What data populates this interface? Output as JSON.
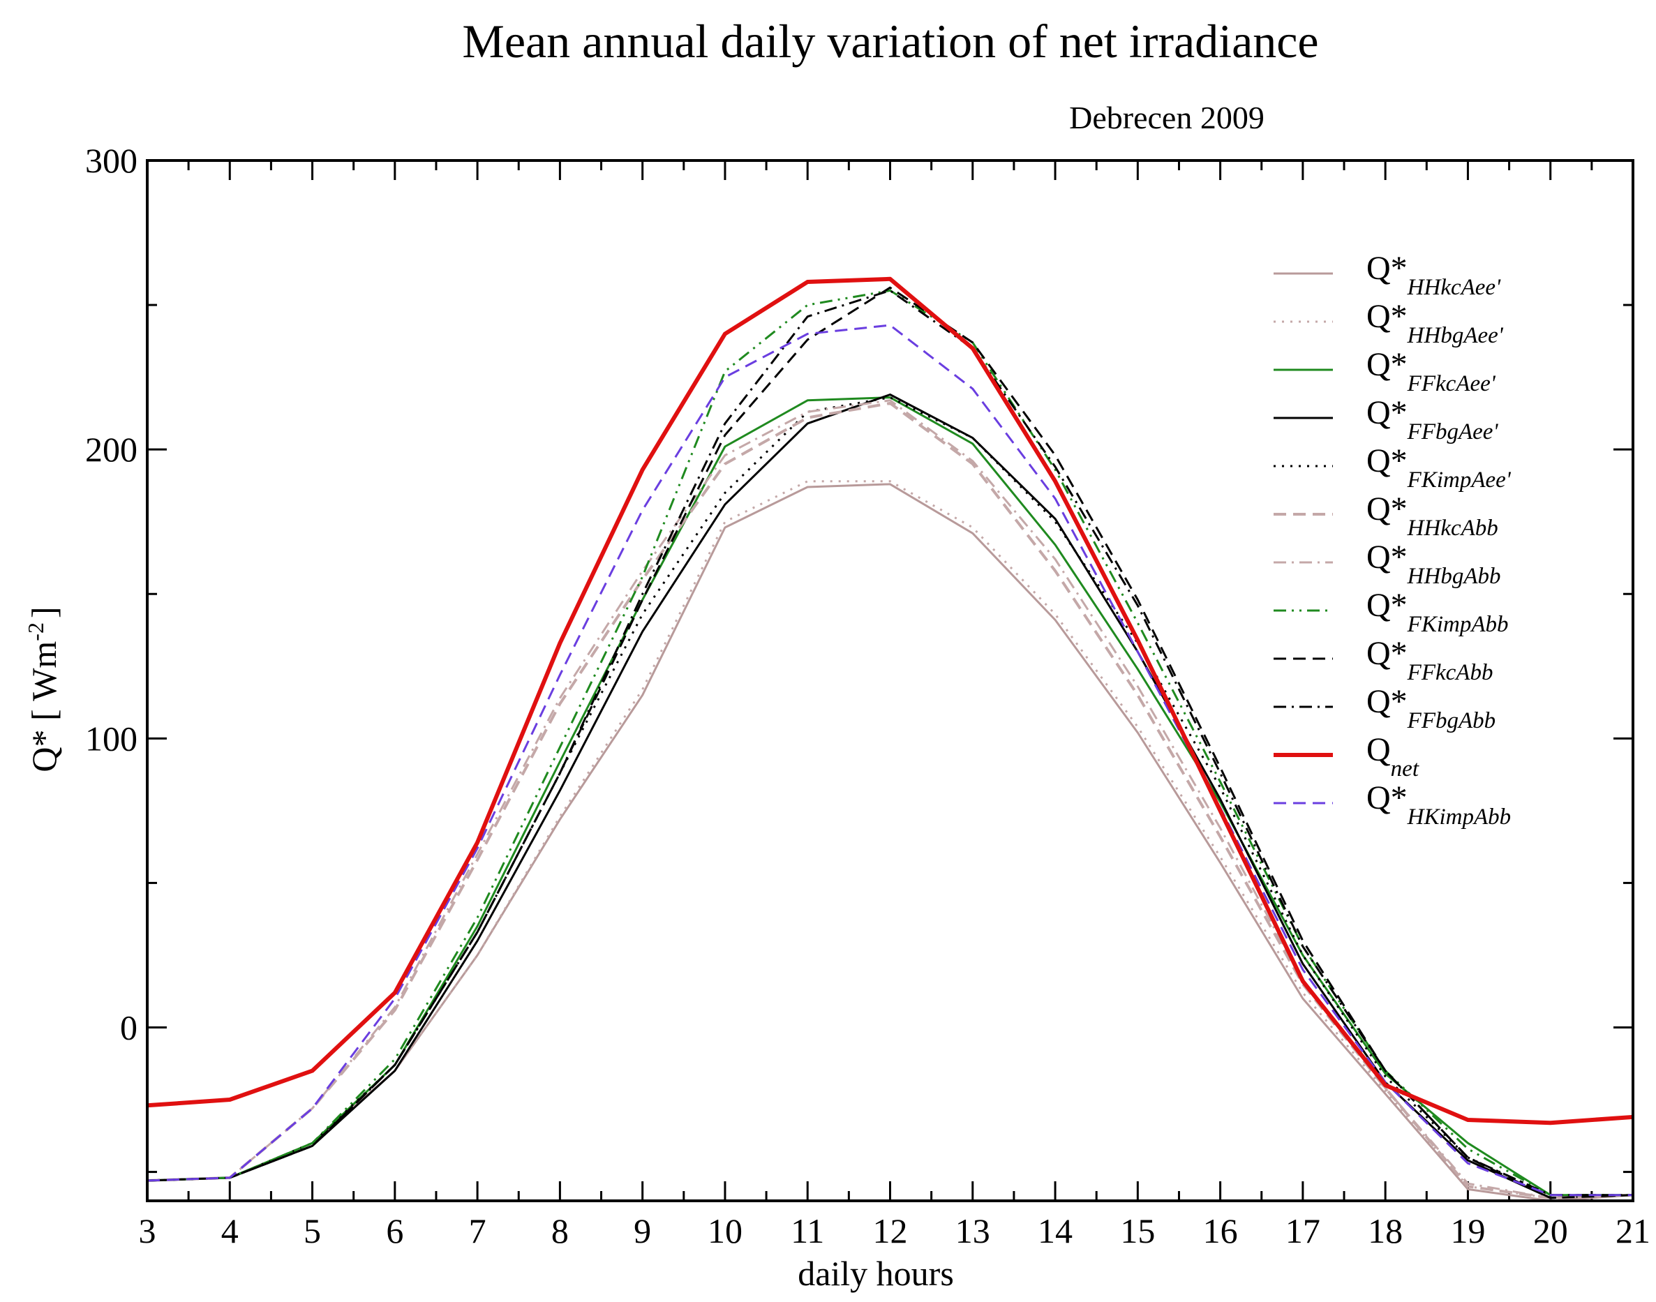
{
  "chart_data": {
    "type": "line",
    "title": "Mean annual daily variation of net irradiance",
    "subtitle": "Debrecen 2009",
    "xlabel": "daily hours",
    "ylabel": {
      "main": "Q* [ Wm",
      "sup": "-2",
      "end": "]"
    },
    "xlim": [
      3,
      21
    ],
    "ylim": [
      -60,
      300
    ],
    "xticks": [
      "3",
      "4",
      "5",
      "6",
      "7",
      "8",
      "9",
      "10",
      "11",
      "12",
      "13",
      "14",
      "15",
      "16",
      "17",
      "18",
      "19",
      "20",
      "21"
    ],
    "yticks": [
      "0",
      "100",
      "200",
      "300"
    ],
    "x": [
      3,
      4,
      5,
      6,
      7,
      8,
      9,
      10,
      11,
      12,
      13,
      14,
      15,
      16,
      17,
      18,
      19,
      20,
      21
    ],
    "series": [
      {
        "name": "Q*",
        "sub": "HHkcAee'",
        "color": "#b89a9a",
        "dash": "",
        "width": 3,
        "values": [
          -53,
          -52,
          -40,
          -15,
          25,
          72,
          115,
          173,
          187,
          188,
          171,
          141,
          102,
          57,
          10,
          -23,
          -56,
          -60,
          -58
        ]
      },
      {
        "name": "Q*",
        "sub": "HHbgAee'",
        "color": "#c4a8a8",
        "dash": "3 9",
        "width": 3,
        "values": [
          -53,
          -52,
          -40,
          -15,
          25,
          73,
          117,
          175,
          189,
          189,
          173,
          143,
          104,
          59,
          12,
          -22,
          -55,
          -59,
          -58
        ]
      },
      {
        "name": "Q*",
        "sub": "FFkcAee'",
        "color": "#1f8a1f",
        "dash": "",
        "width": 3,
        "values": [
          -53,
          -52,
          -40,
          -13,
          35,
          92,
          148,
          201,
          217,
          218,
          202,
          167,
          124,
          78,
          25,
          -16,
          -40,
          -58,
          -58
        ]
      },
      {
        "name": "Q*",
        "sub": "FFbgAee'",
        "color": "#000000",
        "dash": "",
        "width": 3,
        "values": [
          -53,
          -52,
          -41,
          -15,
          30,
          82,
          137,
          181,
          209,
          219,
          204,
          176,
          130,
          79,
          22,
          -19,
          -46,
          -59,
          -58
        ]
      },
      {
        "name": "Q*",
        "sub": "FKimpAee'",
        "color": "#000000",
        "dash": "3 9",
        "width": 3,
        "values": [
          -53,
          -52,
          -40,
          -13,
          33,
          88,
          143,
          185,
          213,
          218,
          204,
          175,
          133,
          83,
          25,
          -17,
          -45,
          -58,
          -58
        ]
      },
      {
        "name": "Q*",
        "sub": "HHkcAbb",
        "color": "#c4a8a8",
        "dash": "18 10",
        "width": 4,
        "values": [
          -53,
          -52,
          -28,
          6,
          58,
          112,
          155,
          195,
          211,
          216,
          195,
          158,
          115,
          66,
          15,
          -21,
          -55,
          -59,
          -58
        ]
      },
      {
        "name": "Q*",
        "sub": "HHbgAbb",
        "color": "#c4a8a8",
        "dash": "18 8 3 8",
        "width": 3,
        "values": [
          -53,
          -52,
          -28,
          7,
          60,
          114,
          158,
          198,
          213,
          217,
          196,
          162,
          118,
          69,
          16,
          -21,
          -54,
          -59,
          -58
        ]
      },
      {
        "name": "Q*",
        "sub": "FKimpAbb",
        "color": "#1f8a1f",
        "dash": "18 8 3 8 3 8",
        "width": 3,
        "values": [
          -53,
          -52,
          -40,
          -11,
          38,
          97,
          156,
          227,
          250,
          255,
          237,
          193,
          140,
          85,
          28,
          -15,
          -42,
          -58,
          -58
        ]
      },
      {
        "name": "Q*",
        "sub": "FFkcAbb",
        "color": "#000000",
        "dash": "18 10",
        "width": 3,
        "values": [
          -53,
          -52,
          -41,
          -13,
          33,
          88,
          148,
          205,
          238,
          256,
          237,
          198,
          148,
          90,
          30,
          -15,
          -45,
          -59,
          -58
        ]
      },
      {
        "name": "Q*",
        "sub": "FFbgAbb",
        "color": "#000000",
        "dash": "18 8 3 8",
        "width": 3,
        "values": [
          -53,
          -52,
          -41,
          -13,
          33,
          88,
          150,
          209,
          246,
          255,
          235,
          194,
          146,
          88,
          28,
          -15,
          -45,
          -58,
          -58
        ]
      },
      {
        "name": "Q",
        "sub": "net",
        "color": "#e01010",
        "dash": "",
        "width": 6,
        "values": [
          -27,
          -25,
          -15,
          12,
          64,
          133,
          193,
          240,
          258,
          259,
          235,
          189,
          134,
          75,
          16,
          -20,
          -32,
          -33,
          -31
        ]
      },
      {
        "name": "Q*",
        "sub": "HKimpAbb",
        "color": "#6a3ee0",
        "dash": "18 10",
        "width": 3,
        "values": [
          -53,
          -52,
          -28,
          10,
          62,
          122,
          179,
          225,
          240,
          243,
          221,
          183,
          130,
          76,
          20,
          -19,
          -47,
          -58,
          -58
        ]
      }
    ]
  }
}
